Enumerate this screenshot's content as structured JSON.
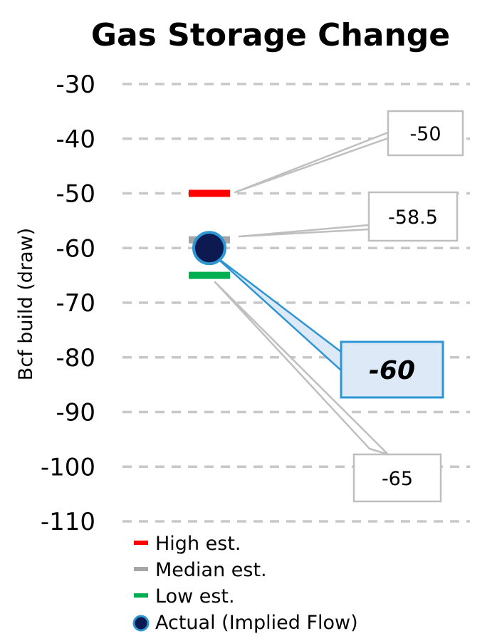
{
  "chart_data": {
    "type": "scatter",
    "title": "Gas Storage Change",
    "ylabel": "Bcf build (draw)",
    "ylim": [
      -110,
      -30
    ],
    "yticks": [
      -30,
      -40,
      -50,
      -60,
      -70,
      -80,
      -90,
      -100,
      -110
    ],
    "grid": true,
    "legend_position": "bottom-left",
    "series": [
      {
        "name": "High est.",
        "value": -50,
        "label": "-50",
        "marker": "dash",
        "color": "#ff0000"
      },
      {
        "name": "Median est.",
        "value": -58.5,
        "label": "-58.5",
        "marker": "dash",
        "color": "#a6a6a6"
      },
      {
        "name": "Low est.",
        "value": -65,
        "label": "-65",
        "marker": "dash",
        "color": "#00b050"
      },
      {
        "name": "Actual (Implied Flow)",
        "value": -60,
        "label": "-60",
        "marker": "circle",
        "color": "#0d1a52",
        "edge_color": "#2e95d3"
      }
    ]
  }
}
